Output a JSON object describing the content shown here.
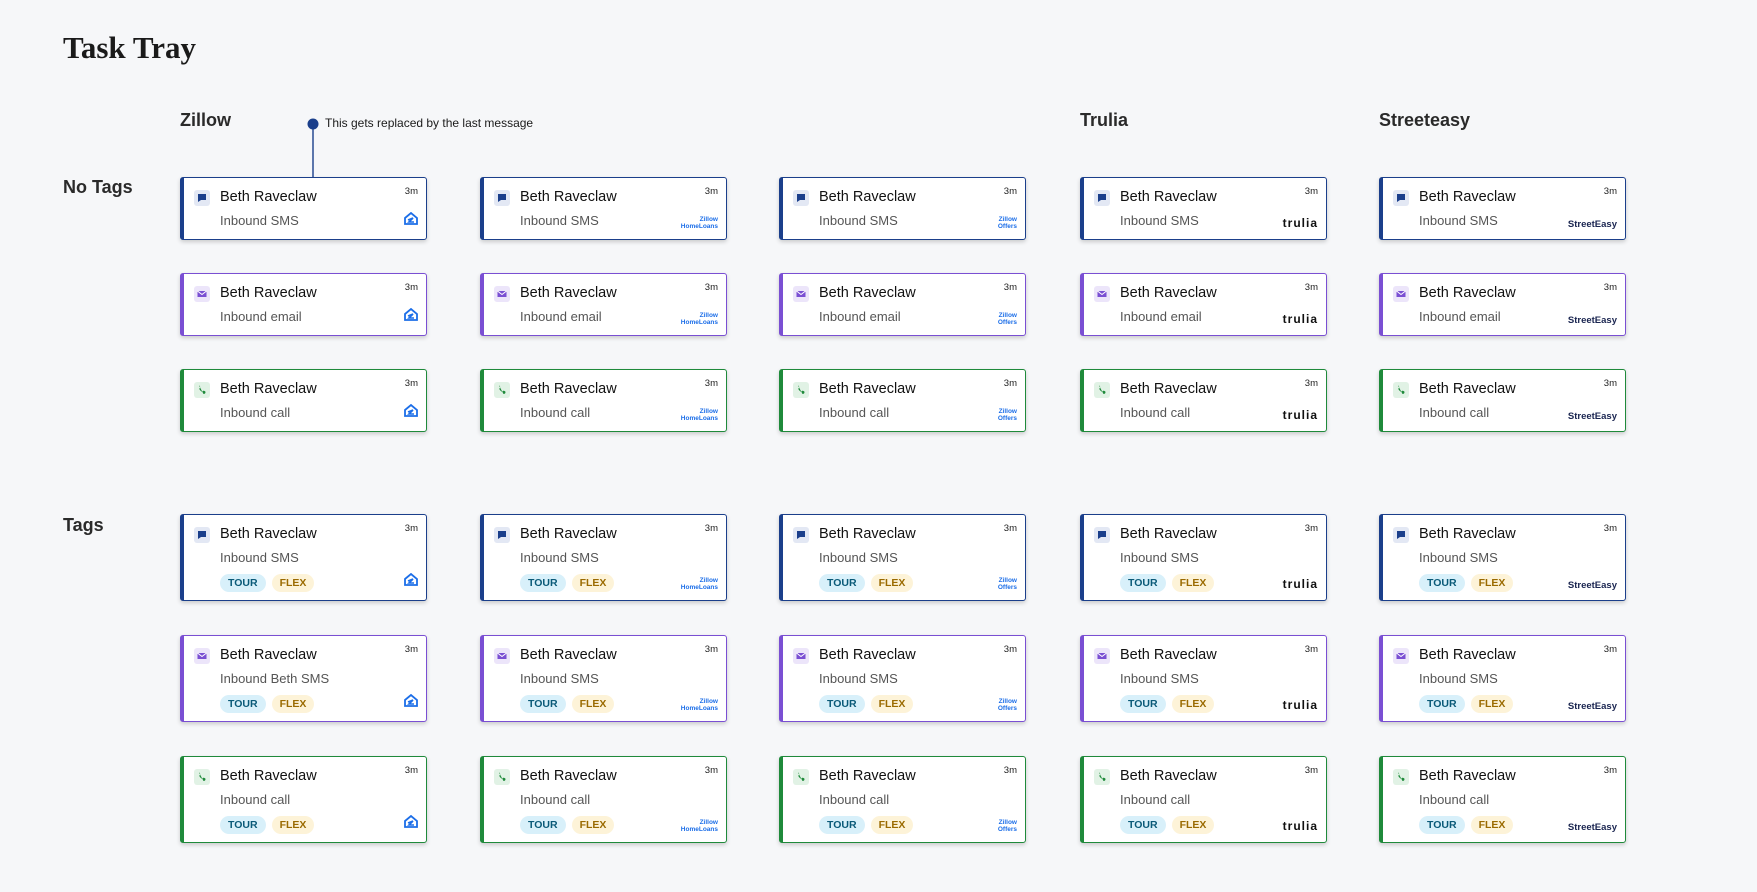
{
  "title": "Task Tray",
  "annotation": "This gets replaced by the last message",
  "columns": [
    {
      "header": "Zillow"
    },
    {
      "logo": [
        "Zillow",
        "HomeLoans"
      ]
    },
    {
      "logo": [
        "Zillow",
        "Offers"
      ]
    },
    {
      "header": "Trulia",
      "logo": [
        "trulia"
      ]
    },
    {
      "header": "Streeteasy",
      "logo": [
        "StreetEasy"
      ]
    }
  ],
  "sections": [
    {
      "label": "No Tags",
      "rows": [
        {
          "kind": "sms",
          "color": "#1b3f8b",
          "cards": [
            {
              "name": "Beth Raveclaw",
              "subtitle": "Inbound SMS",
              "time": "3m"
            },
            {
              "name": "Beth Raveclaw",
              "subtitle": "Inbound SMS",
              "time": "3m"
            },
            {
              "name": "Beth Raveclaw",
              "subtitle": "Inbound SMS",
              "time": "3m"
            },
            {
              "name": "Beth Raveclaw",
              "subtitle": "Inbound SMS",
              "time": "3m"
            },
            {
              "name": "Beth Raveclaw",
              "subtitle": "Inbound SMS",
              "time": "3m"
            }
          ]
        },
        {
          "kind": "email",
          "color": "#7a4fd3",
          "cards": [
            {
              "name": "Beth Raveclaw",
              "subtitle": "Inbound email",
              "time": "3m"
            },
            {
              "name": "Beth Raveclaw",
              "subtitle": "Inbound email",
              "time": "3m"
            },
            {
              "name": "Beth Raveclaw",
              "subtitle": "Inbound email",
              "time": "3m"
            },
            {
              "name": "Beth Raveclaw",
              "subtitle": "Inbound email",
              "time": "3m"
            },
            {
              "name": "Beth Raveclaw",
              "subtitle": "Inbound email",
              "time": "3m"
            }
          ]
        },
        {
          "kind": "call",
          "color": "#1f8a3b",
          "cards": [
            {
              "name": "Beth Raveclaw",
              "subtitle": "Inbound call",
              "time": "3m"
            },
            {
              "name": "Beth Raveclaw",
              "subtitle": "Inbound call",
              "time": "3m"
            },
            {
              "name": "Beth Raveclaw",
              "subtitle": "Inbound call",
              "time": "3m"
            },
            {
              "name": "Beth Raveclaw",
              "subtitle": "Inbound call",
              "time": "3m"
            },
            {
              "name": "Beth Raveclaw",
              "subtitle": "Inbound call",
              "time": "3m"
            }
          ]
        }
      ]
    },
    {
      "label": "Tags",
      "rows": [
        {
          "kind": "sms",
          "color": "#1b3f8b",
          "cards": [
            {
              "name": "Beth Raveclaw",
              "subtitle": "Inbound SMS",
              "time": "3m",
              "tags": [
                "TOUR",
                "FLEX"
              ]
            },
            {
              "name": "Beth Raveclaw",
              "subtitle": "Inbound SMS",
              "time": "3m",
              "tags": [
                "TOUR",
                "FLEX"
              ]
            },
            {
              "name": "Beth Raveclaw",
              "subtitle": "Inbound SMS",
              "time": "3m",
              "tags": [
                "TOUR",
                "FLEX"
              ]
            },
            {
              "name": "Beth Raveclaw",
              "subtitle": "Inbound SMS",
              "time": "3m",
              "tags": [
                "TOUR",
                "FLEX"
              ]
            },
            {
              "name": "Beth Raveclaw",
              "subtitle": "Inbound SMS",
              "time": "3m",
              "tags": [
                "TOUR",
                "FLEX"
              ]
            }
          ]
        },
        {
          "kind": "email",
          "color": "#7a4fd3",
          "cards": [
            {
              "name": "Beth Raveclaw",
              "subtitle": "Inbound Beth SMS",
              "time": "3m",
              "tags": [
                "TOUR",
                "FLEX"
              ]
            },
            {
              "name": "Beth Raveclaw",
              "subtitle": "Inbound SMS",
              "time": "3m",
              "tags": [
                "TOUR",
                "FLEX"
              ]
            },
            {
              "name": "Beth Raveclaw",
              "subtitle": "Inbound SMS",
              "time": "3m",
              "tags": [
                "TOUR",
                "FLEX"
              ]
            },
            {
              "name": "Beth Raveclaw",
              "subtitle": "Inbound SMS",
              "time": "3m",
              "tags": [
                "TOUR",
                "FLEX"
              ]
            },
            {
              "name": "Beth Raveclaw",
              "subtitle": "Inbound SMS",
              "time": "3m",
              "tags": [
                "TOUR",
                "FLEX"
              ]
            }
          ]
        },
        {
          "kind": "call",
          "color": "#1f8a3b",
          "cards": [
            {
              "name": "Beth Raveclaw",
              "subtitle": "Inbound call",
              "time": "3m",
              "tags": [
                "TOUR",
                "FLEX"
              ]
            },
            {
              "name": "Beth Raveclaw",
              "subtitle": "Inbound call",
              "time": "3m",
              "tags": [
                "TOUR",
                "FLEX"
              ]
            },
            {
              "name": "Beth Raveclaw",
              "subtitle": "Inbound call",
              "time": "3m",
              "tags": [
                "TOUR",
                "FLEX"
              ]
            },
            {
              "name": "Beth Raveclaw",
              "subtitle": "Inbound call",
              "time": "3m",
              "tags": [
                "TOUR",
                "FLEX"
              ]
            },
            {
              "name": "Beth Raveclaw",
              "subtitle": "Inbound call",
              "time": "3m",
              "tags": [
                "TOUR",
                "FLEX"
              ]
            }
          ]
        }
      ]
    }
  ]
}
